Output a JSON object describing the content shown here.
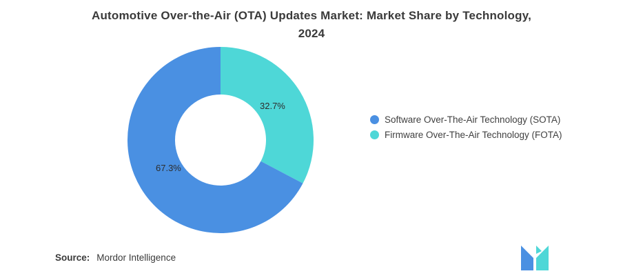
{
  "title": {
    "line1": "Automotive Over-the-Air (OTA) Updates Market: Market Share by Technology,",
    "line2": "2024"
  },
  "source": {
    "label": "Source:",
    "value": "Mordor Intelligence"
  },
  "chart_data": {
    "type": "pie",
    "subtype": "donut",
    "title": "Automotive Over-the-Air (OTA) Updates Market: Market Share by Technology, 2024",
    "unit": "%",
    "start": "top",
    "legend_position": "right",
    "series": [
      {
        "name": "Software Over-The-Air Technology (SOTA)",
        "value": 67.3,
        "label": "67.3%",
        "color": "#4A90E2"
      },
      {
        "name": "Firmware Over-The-Air Technology (FOTA)",
        "value": 32.7,
        "label": "32.7%",
        "color": "#4ED7D7"
      }
    ]
  }
}
